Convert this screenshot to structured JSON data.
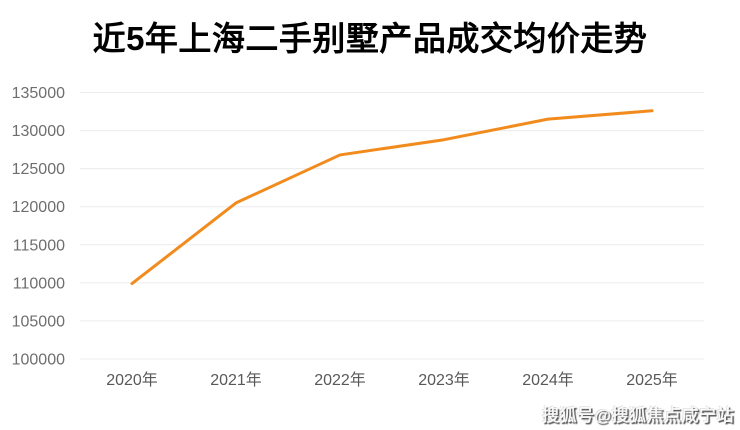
{
  "title": "近5年上海二手别墅产品成交均价走势",
  "watermark": "搜狐号@搜狐焦点咸宁站",
  "colors": {
    "line": "#F28B1E",
    "grid": "#ECECEC",
    "y_label": "#6E6E6E",
    "x_label": "#595959",
    "title": "#000000",
    "background": "#FFFFFF"
  },
  "chart_data": {
    "type": "line",
    "title": "近5年上海二手别墅产品成交均价走势",
    "categories": [
      "2020年",
      "2021年",
      "2022年",
      "2023年",
      "2024年",
      "2025年"
    ],
    "values": [
      109900,
      120500,
      126800,
      128800,
      131500,
      132600
    ],
    "xlabel": "",
    "ylabel": "",
    "ylim": [
      100000,
      135000
    ],
    "yticks": [
      100000,
      105000,
      110000,
      115000,
      120000,
      125000,
      130000,
      135000
    ],
    "grid": true,
    "legend": false,
    "line_color": "#F28B1E"
  }
}
